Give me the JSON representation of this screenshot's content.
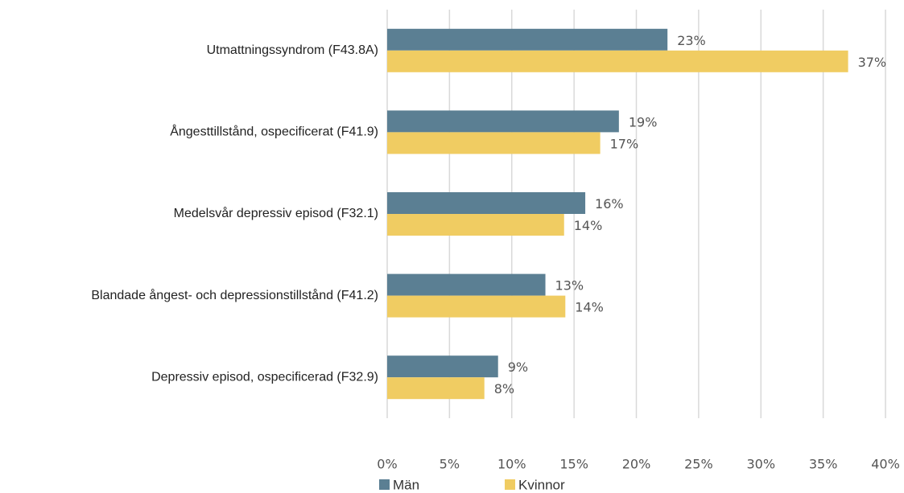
{
  "chart_data": {
    "type": "hbar",
    "categories": [
      "Utmattningssyndrom (F43.8A)",
      "Ångesttillstånd, ospecificerat (F41.9)",
      "Medelsvår depressiv episod (F32.1)",
      "Blandade ångest- och depressionstillstånd (F41.2)",
      "Depressiv episod, ospecificerad (F32.9)"
    ],
    "series": [
      {
        "name": "Män",
        "color": "#5b7f93",
        "values": [
          22.5,
          18.6,
          15.9,
          12.7,
          8.9
        ],
        "value_labels": [
          "23%",
          "19%",
          "16%",
          "13%",
          "9%"
        ]
      },
      {
        "name": "Kvinnor",
        "color": "#f0cc62",
        "values": [
          37,
          17.1,
          14.2,
          14.3,
          7.8
        ],
        "value_labels": [
          "37%",
          "17%",
          "14%",
          "14%",
          "8%"
        ]
      }
    ],
    "xlim": [
      0,
      40
    ],
    "xticks": [
      {
        "value": 0,
        "label": "0%"
      },
      {
        "value": 5,
        "label": "5%"
      },
      {
        "value": 10,
        "label": "10%"
      },
      {
        "value": 15,
        "label": "15%"
      },
      {
        "value": 20,
        "label": "20%"
      },
      {
        "value": 25,
        "label": "25%"
      },
      {
        "value": 30,
        "label": "30%"
      },
      {
        "value": 35,
        "label": "35%"
      },
      {
        "value": 40,
        "label": "40%"
      }
    ],
    "grid": true,
    "legend": "bottom"
  }
}
